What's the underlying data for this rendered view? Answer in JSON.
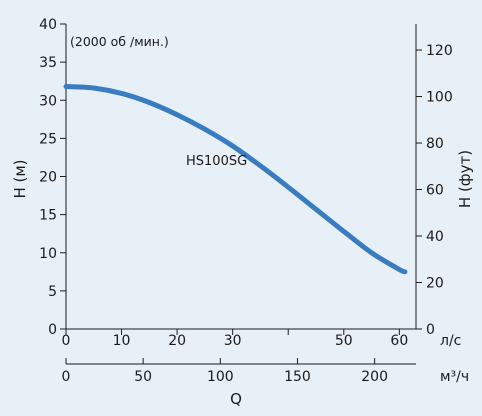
{
  "chart_data": {
    "type": "line",
    "annotation": "(2000 об /мин.)",
    "series": [
      {
        "name": "HS100SG",
        "x": [
          0,
          5,
          10,
          15,
          20,
          25,
          30,
          35,
          40,
          45,
          50,
          55,
          60,
          61
        ],
        "y": [
          31.8,
          31.6,
          30.9,
          29.7,
          28.1,
          26.2,
          24.0,
          21.4,
          18.6,
          15.7,
          12.8,
          10.0,
          7.8,
          7.5
        ]
      }
    ],
    "color": "#3a7cc0",
    "left_axis": {
      "label": "H (м)",
      "ticks": [
        "0",
        "5",
        "10",
        "15",
        "20",
        "25",
        "30",
        "35",
        "40"
      ],
      "range": [
        0,
        40
      ]
    },
    "right_axis": {
      "label": "H (фут)",
      "ticks": [
        "0",
        "20",
        "40",
        "60",
        "80",
        "100",
        "120"
      ],
      "range": [
        0,
        131.2
      ]
    },
    "bottom_axis_1": {
      "unit": "л/с",
      "ticks": [
        "0",
        "10",
        "20",
        "30",
        "50",
        "60"
      ],
      "range": [
        0,
        63
      ]
    },
    "bottom_axis_2": {
      "unit": "м³/ч",
      "ticks": [
        "0",
        "50",
        "100",
        "150",
        "200"
      ]
    },
    "xlabel": "Q",
    "grid": false
  }
}
